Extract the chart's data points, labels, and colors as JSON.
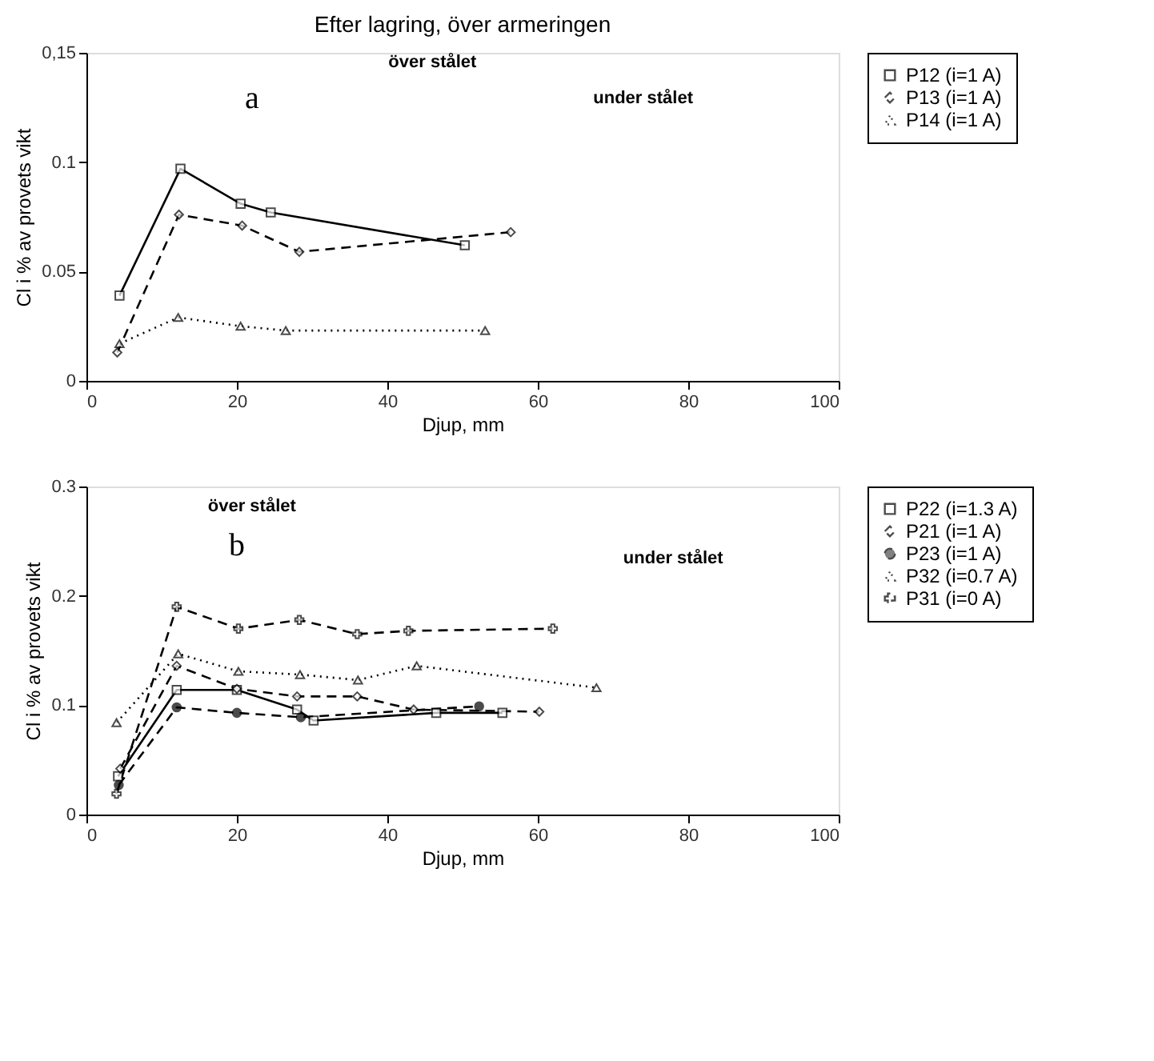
{
  "chart_data": [
    {
      "type": "line",
      "title": "Efter lagring, över armeringen",
      "xlabel": "Djup, mm",
      "ylabel": "Cl i % av provets vikt",
      "annotations": [
        "a",
        "över stålet",
        "under stålet"
      ],
      "xlim": [
        0,
        100
      ],
      "xticks": [
        0,
        20,
        40,
        60,
        80,
        100
      ],
      "ylim": [
        0,
        0.15
      ],
      "yticks": [
        0,
        0.05,
        0.1,
        {
          "value": 0.15,
          "label": "0,15"
        }
      ],
      "grid": false,
      "legend": "right",
      "series": [
        {
          "name": "P12 (i=1 A)",
          "color": "#000000",
          "marker": "square",
          "line_style": "solid",
          "x": [
            4.4,
            12.5,
            20.5,
            24.5,
            50.3
          ],
          "values": [
            0.039,
            0.097,
            0.081,
            0.077,
            0.062
          ]
        },
        {
          "name": "P13 (i=1 A)",
          "color": "#000000",
          "marker": "diamond",
          "line_style": "dashed",
          "x": [
            4.1,
            12.3,
            20.7,
            28.3,
            56.4
          ],
          "values": [
            0.013,
            0.076,
            0.071,
            0.059,
            0.068
          ]
        },
        {
          "name": "P14 (i=1 A)",
          "color": "#000000",
          "marker": "triangle",
          "line_style": "dotted",
          "x": [
            4.4,
            12.2,
            20.5,
            26.5,
            53.0
          ],
          "values": [
            0.017,
            0.029,
            0.025,
            0.023,
            0.023
          ]
        }
      ]
    },
    {
      "type": "line",
      "xlabel": "Djup, mm",
      "ylabel": "Cl i % av provets vikt",
      "annotations": [
        "b",
        "över stålet",
        "under stålet"
      ],
      "xlim": [
        0,
        100
      ],
      "xticks": [
        0,
        20,
        40,
        60,
        80,
        100
      ],
      "ylim": [
        0,
        0.3
      ],
      "yticks": [
        0,
        0.1,
        0.2,
        0.3
      ],
      "grid": false,
      "legend": "right",
      "series": [
        {
          "name": "P22 (i=1.3 A)",
          "color": "#000000",
          "marker": "square",
          "line_style": "solid",
          "x": [
            4.2,
            12,
            20,
            28,
            30.2,
            46.5,
            55.3
          ],
          "values": [
            0.035,
            0.114,
            0.114,
            0.096,
            0.086,
            0.093,
            0.093
          ]
        },
        {
          "name": "P21 (i=1 A)",
          "color": "#000000",
          "marker": "diamond",
          "line_style": "dashed",
          "x": [
            4.5,
            12,
            20,
            28,
            36,
            43.5,
            60.2
          ],
          "values": [
            0.042,
            0.136,
            0.115,
            0.108,
            0.108,
            0.096,
            0.094
          ]
        },
        {
          "name": "P23 (i=1 A)",
          "color": "#000000",
          "marker": "circle",
          "line_style": "dashed",
          "x": [
            4.3,
            12,
            20,
            28.5,
            52.2
          ],
          "values": [
            0.027,
            0.098,
            0.093,
            0.089,
            0.099
          ]
        },
        {
          "name": "P32 (i=0.7 A)",
          "color": "#000000",
          "marker": "triangle",
          "line_style": "dotted",
          "x": [
            4,
            12.2,
            20.2,
            28.4,
            36.1,
            43.9,
            67.8
          ],
          "values": [
            0.084,
            0.147,
            0.131,
            0.128,
            0.123,
            0.136,
            0.116
          ]
        },
        {
          "name": "P31 (i=0 A)",
          "color": "#000000",
          "marker": "cross",
          "line_style": "dashed",
          "x": [
            4,
            12,
            20.2,
            28.3,
            36,
            42.8,
            62
          ],
          "values": [
            0.019,
            0.19,
            0.17,
            0.178,
            0.165,
            0.168,
            0.17
          ]
        }
      ]
    }
  ]
}
